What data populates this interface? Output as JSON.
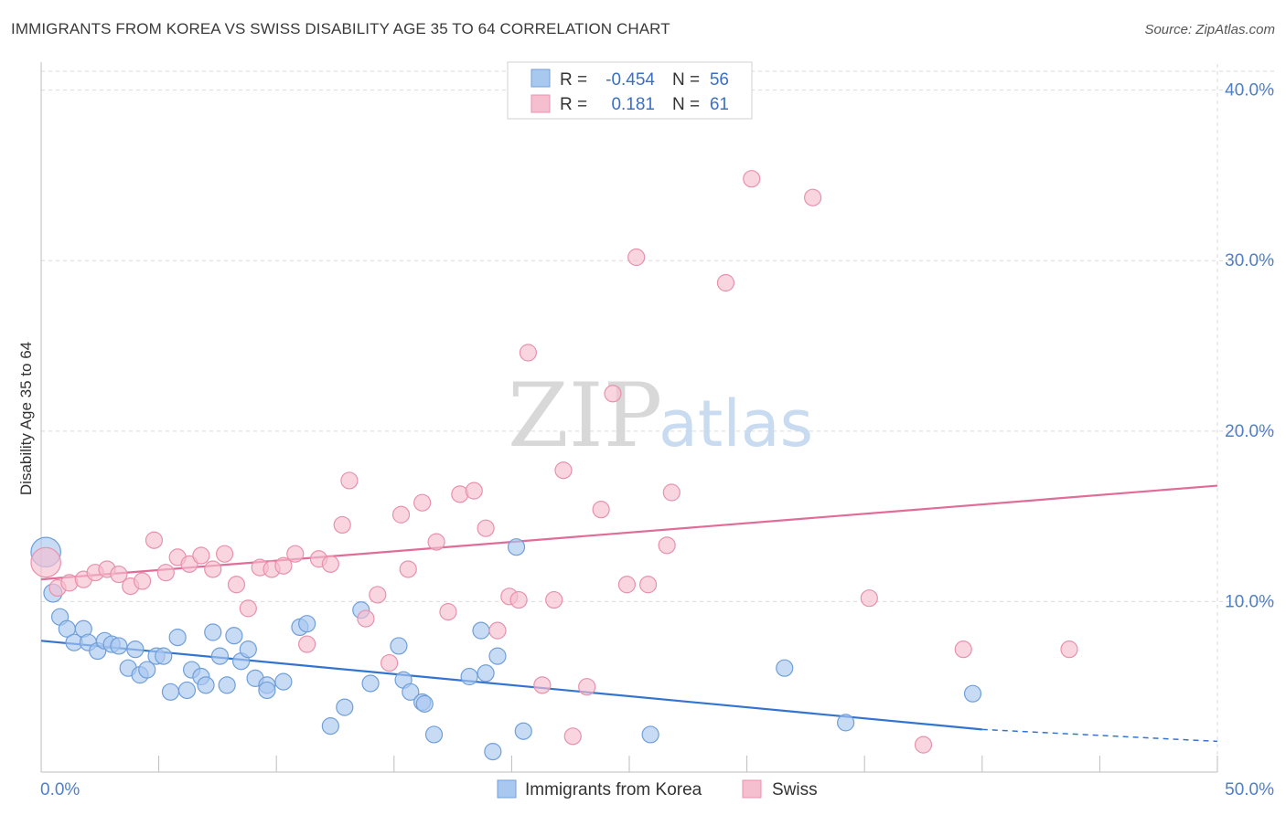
{
  "title": "IMMIGRANTS FROM KOREA VS SWISS DISABILITY AGE 35 TO 64 CORRELATION CHART",
  "source": "Source: ZipAtlas.com",
  "watermark": {
    "zip": "ZIP",
    "atlas": "atlas"
  },
  "colors": {
    "korea_fill": "#a9c8ef",
    "korea_stroke": "#6f9fd9",
    "korea_line": "#3374d0",
    "swiss_fill": "#f6bfd0",
    "swiss_stroke": "#e891ad",
    "swiss_line": "#e06c97",
    "tick_text": "#4f7fc6",
    "grid": "#d9d9d9"
  },
  "legend": {
    "rows": [
      {
        "r_label": "R =",
        "r_value": "-0.454",
        "n_label": "N =",
        "n_value": "56"
      },
      {
        "r_label": "R =",
        "r_value": "0.181",
        "n_label": "N =",
        "n_value": "61"
      }
    ]
  },
  "bottom_legend": [
    "Immigrants from Korea",
    "Swiss"
  ],
  "chart_data": {
    "type": "scatter",
    "title": "IMMIGRANTS FROM KOREA VS SWISS DISABILITY AGE 35 TO 64 CORRELATION CHART",
    "xlabel": "",
    "ylabel": "Disability Age 35 to 64",
    "xlim": [
      0,
      50
    ],
    "ylim": [
      0,
      41
    ],
    "x_tick_labels": [
      "0.0%",
      "50.0%"
    ],
    "y_ticks": [
      10,
      20,
      30,
      40
    ],
    "y_tick_labels": [
      "10.0%",
      "20.0%",
      "30.0%",
      "40.0%"
    ],
    "grid": true,
    "legend_position": "top-center",
    "series": [
      {
        "name": "Immigrants from Korea",
        "r": -0.454,
        "n": 56,
        "trend": {
          "x": [
            0,
            40
          ],
          "y": [
            7.7,
            2.5
          ],
          "dashed_to": [
            50,
            1.8
          ]
        },
        "points": [
          [
            0.2,
            12.9,
            1.8
          ],
          [
            0.5,
            10.5,
            1.1
          ],
          [
            0.8,
            9.1,
            1
          ],
          [
            1.1,
            8.4,
            1
          ],
          [
            1.4,
            7.6,
            1
          ],
          [
            1.8,
            8.4,
            1
          ],
          [
            2.0,
            7.6,
            1
          ],
          [
            2.4,
            7.1,
            1
          ],
          [
            2.7,
            7.7,
            1
          ],
          [
            3.0,
            7.5,
            1
          ],
          [
            3.3,
            7.4,
            1
          ],
          [
            3.7,
            6.1,
            1
          ],
          [
            4.0,
            7.2,
            1
          ],
          [
            4.2,
            5.7,
            1
          ],
          [
            4.5,
            6.0,
            1
          ],
          [
            4.9,
            6.8,
            1
          ],
          [
            5.2,
            6.8,
            1
          ],
          [
            5.5,
            4.7,
            1
          ],
          [
            5.8,
            7.9,
            1
          ],
          [
            6.2,
            4.8,
            1
          ],
          [
            6.4,
            6.0,
            1
          ],
          [
            6.8,
            5.6,
            1
          ],
          [
            7.0,
            5.1,
            1
          ],
          [
            7.3,
            8.2,
            1
          ],
          [
            7.6,
            6.8,
            1
          ],
          [
            7.9,
            5.1,
            1
          ],
          [
            8.2,
            8.0,
            1
          ],
          [
            8.5,
            6.5,
            1
          ],
          [
            8.8,
            7.2,
            1
          ],
          [
            9.1,
            5.5,
            1
          ],
          [
            9.6,
            5.1,
            1
          ],
          [
            9.6,
            4.8,
            1
          ],
          [
            10.3,
            5.3,
            1
          ],
          [
            11.0,
            8.5,
            1
          ],
          [
            11.3,
            8.7,
            1
          ],
          [
            12.3,
            2.7,
            1
          ],
          [
            12.9,
            3.8,
            1
          ],
          [
            13.6,
            9.5,
            1
          ],
          [
            14.0,
            5.2,
            1
          ],
          [
            15.2,
            7.4,
            1
          ],
          [
            15.4,
            5.4,
            1
          ],
          [
            15.7,
            4.7,
            1
          ],
          [
            16.2,
            4.1,
            1
          ],
          [
            16.3,
            4.0,
            1
          ],
          [
            16.7,
            2.2,
            1
          ],
          [
            18.2,
            5.6,
            1
          ],
          [
            18.7,
            8.3,
            1
          ],
          [
            18.9,
            5.8,
            1
          ],
          [
            19.2,
            1.2,
            1
          ],
          [
            19.4,
            6.8,
            1
          ],
          [
            20.2,
            13.2,
            1
          ],
          [
            20.5,
            2.4,
            1
          ],
          [
            25.9,
            2.2,
            1
          ],
          [
            31.6,
            6.1,
            1
          ],
          [
            34.2,
            2.9,
            1
          ],
          [
            39.6,
            4.6,
            1
          ]
        ]
      },
      {
        "name": "Swiss",
        "r": 0.181,
        "n": 61,
        "trend": {
          "x": [
            0,
            50
          ],
          "y": [
            11.3,
            16.8
          ]
        },
        "points": [
          [
            0.2,
            12.3,
            1.8
          ],
          [
            0.7,
            10.8,
            1
          ],
          [
            1.2,
            11.1,
            1
          ],
          [
            1.8,
            11.3,
            1
          ],
          [
            2.3,
            11.7,
            1
          ],
          [
            2.8,
            11.9,
            1
          ],
          [
            3.3,
            11.6,
            1
          ],
          [
            3.8,
            10.9,
            1
          ],
          [
            4.3,
            11.2,
            1
          ],
          [
            4.8,
            13.6,
            1
          ],
          [
            5.3,
            11.7,
            1
          ],
          [
            5.8,
            12.6,
            1
          ],
          [
            6.3,
            12.2,
            1
          ],
          [
            6.8,
            12.7,
            1
          ],
          [
            7.3,
            11.9,
            1
          ],
          [
            7.8,
            12.8,
            1
          ],
          [
            8.3,
            11.0,
            1
          ],
          [
            8.8,
            9.6,
            1
          ],
          [
            9.3,
            12.0,
            1
          ],
          [
            9.8,
            11.9,
            1
          ],
          [
            10.3,
            12.1,
            1
          ],
          [
            10.8,
            12.8,
            1
          ],
          [
            11.3,
            7.5,
            1
          ],
          [
            11.8,
            12.5,
            1
          ],
          [
            12.3,
            12.2,
            1
          ],
          [
            12.8,
            14.5,
            1
          ],
          [
            13.1,
            17.1,
            1
          ],
          [
            13.8,
            9.0,
            1
          ],
          [
            14.3,
            10.4,
            1
          ],
          [
            14.8,
            6.4,
            1
          ],
          [
            15.3,
            15.1,
            1
          ],
          [
            15.6,
            11.9,
            1
          ],
          [
            16.2,
            15.8,
            1
          ],
          [
            16.8,
            13.5,
            1
          ],
          [
            17.3,
            9.4,
            1
          ],
          [
            17.8,
            16.3,
            1
          ],
          [
            18.4,
            16.5,
            1
          ],
          [
            18.9,
            14.3,
            1
          ],
          [
            19.4,
            8.3,
            1
          ],
          [
            19.9,
            10.3,
            1
          ],
          [
            20.3,
            10.1,
            1
          ],
          [
            20.7,
            24.6,
            1
          ],
          [
            21.3,
            5.1,
            1
          ],
          [
            21.8,
            10.1,
            1
          ],
          [
            22.2,
            17.7,
            1
          ],
          [
            22.6,
            2.1,
            1
          ],
          [
            23.2,
            5.0,
            1
          ],
          [
            23.8,
            15.4,
            1
          ],
          [
            24.3,
            22.2,
            1
          ],
          [
            24.9,
            11.0,
            1
          ],
          [
            25.3,
            30.2,
            1
          ],
          [
            25.8,
            11.0,
            1
          ],
          [
            26.6,
            13.3,
            1
          ],
          [
            26.8,
            16.4,
            1
          ],
          [
            29.1,
            28.7,
            1
          ],
          [
            30.2,
            34.8,
            1
          ],
          [
            32.8,
            33.7,
            1
          ],
          [
            35.2,
            10.2,
            1
          ],
          [
            37.5,
            1.6,
            1
          ],
          [
            39.2,
            7.2,
            1
          ],
          [
            43.7,
            7.2,
            1
          ]
        ]
      }
    ]
  }
}
